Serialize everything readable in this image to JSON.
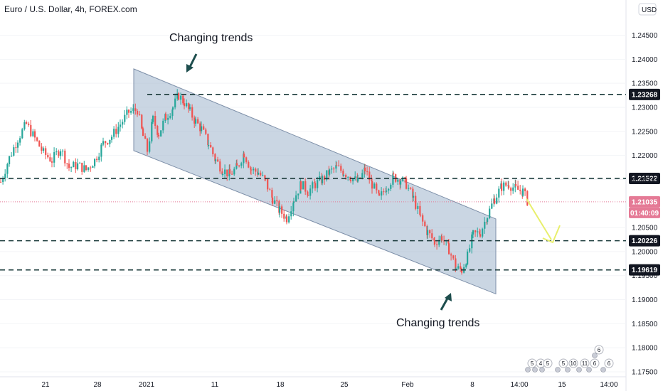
{
  "header": {
    "title": "Euro / U.S. Dollar, 4h, FOREX.com",
    "currency_button": "USD"
  },
  "chart_data": {
    "type": "candlestick",
    "title": "Euro / U.S. Dollar, 4h, FOREX.com",
    "ylim": [
      1.1745,
      1.2545
    ],
    "y_ticks": [
      "1.24500",
      "1.24000",
      "1.23500",
      "1.23000",
      "1.22500",
      "1.22000",
      "1.21500",
      "1.20500",
      "1.20000",
      "1.19500",
      "1.19000",
      "1.18500",
      "1.18000",
      "1.17500"
    ],
    "x_ticks": [
      "21",
      "28",
      "2021",
      "11",
      "18",
      "25",
      "Feb",
      "8",
      "14:00",
      "15",
      "14:00"
    ],
    "horizontal_levels": [
      1.23268,
      1.21522,
      1.20226,
      1.19619
    ],
    "level_labels": [
      "1.23268",
      "1.21522",
      "1.20226",
      "1.19619"
    ],
    "current_price": 1.21035,
    "current_price_label": "1.21035",
    "countdown": "01:40:09",
    "channel": {
      "upper": [
        [
          "Dec 30",
          1.238
        ],
        [
          "Feb 10",
          1.2068
        ]
      ],
      "lower": [
        [
          "Dec 30",
          1.221
        ],
        [
          "Feb 10",
          1.1912
        ]
      ]
    },
    "path": [
      [
        0,
        1.2145
      ],
      [
        12,
        1.2195
      ],
      [
        24,
        1.2235
      ],
      [
        36,
        1.2265
      ],
      [
        48,
        1.2235
      ],
      [
        60,
        1.2205
      ],
      [
        72,
        1.219
      ],
      [
        84,
        1.2215
      ],
      [
        96,
        1.2175
      ],
      [
        108,
        1.218
      ],
      [
        120,
        1.217
      ],
      [
        132,
        1.219
      ],
      [
        144,
        1.2225
      ],
      [
        156,
        1.224
      ],
      [
        168,
        1.2265
      ],
      [
        180,
        1.229
      ],
      [
        192,
        1.2295
      ],
      [
        200,
        1.224
      ],
      [
        206,
        1.221
      ],
      [
        214,
        1.2275
      ],
      [
        222,
        1.2245
      ],
      [
        232,
        1.228
      ],
      [
        242,
        1.23
      ],
      [
        250,
        1.2325
      ],
      [
        258,
        1.231
      ],
      [
        266,
        1.229
      ],
      [
        274,
        1.227
      ],
      [
        282,
        1.2255
      ],
      [
        292,
        1.2225
      ],
      [
        302,
        1.219
      ],
      [
        312,
        1.217
      ],
      [
        322,
        1.216
      ],
      [
        332,
        1.2175
      ],
      [
        342,
        1.2205
      ],
      [
        352,
        1.217
      ],
      [
        362,
        1.2165
      ],
      [
        372,
        1.2145
      ],
      [
        382,
        1.211
      ],
      [
        392,
        1.2085
      ],
      [
        402,
        1.207
      ],
      [
        412,
        1.211
      ],
      [
        422,
        1.214
      ],
      [
        432,
        1.2125
      ],
      [
        442,
        1.214
      ],
      [
        452,
        1.215
      ],
      [
        462,
        1.2165
      ],
      [
        472,
        1.2175
      ],
      [
        482,
        1.2165
      ],
      [
        492,
        1.2155
      ],
      [
        502,
        1.2145
      ],
      [
        512,
        1.217
      ],
      [
        522,
        1.214
      ],
      [
        532,
        1.211
      ],
      [
        542,
        1.2135
      ],
      [
        552,
        1.2155
      ],
      [
        562,
        1.215
      ],
      [
        570,
        1.214
      ],
      [
        580,
        1.211
      ],
      [
        590,
        1.207
      ],
      [
        600,
        1.204
      ],
      [
        610,
        1.202
      ],
      [
        620,
        1.203
      ],
      [
        630,
        1.2005
      ],
      [
        640,
        1.1965
      ],
      [
        648,
        1.1962
      ],
      [
        656,
        1.199
      ],
      [
        664,
        1.2035
      ],
      [
        674,
        1.204
      ],
      [
        684,
        1.2075
      ],
      [
        694,
        1.211
      ],
      [
        704,
        1.2135
      ],
      [
        714,
        1.214
      ],
      [
        724,
        1.213
      ],
      [
        734,
        1.2125
      ],
      [
        742,
        1.21
      ]
    ],
    "projection_arrow": [
      [
        740,
        1.211
      ],
      [
        775,
        1.2025
      ]
    ]
  },
  "annotations": {
    "top": "Changing trends",
    "bottom": "Changing trends"
  },
  "events": [
    "5",
    "4",
    "5",
    "5",
    "10",
    "11",
    "6",
    "6",
    "6"
  ],
  "colors": {
    "up": "#26a69a",
    "down": "#ef5350",
    "channel_fill": "#9fb4cc",
    "level_line": "#1a3a3a",
    "tag_bg": "#131722",
    "price_tag": "#e57a96",
    "arrow": "#e8ef6c",
    "annotation_arrow": "#1d4d4d"
  }
}
